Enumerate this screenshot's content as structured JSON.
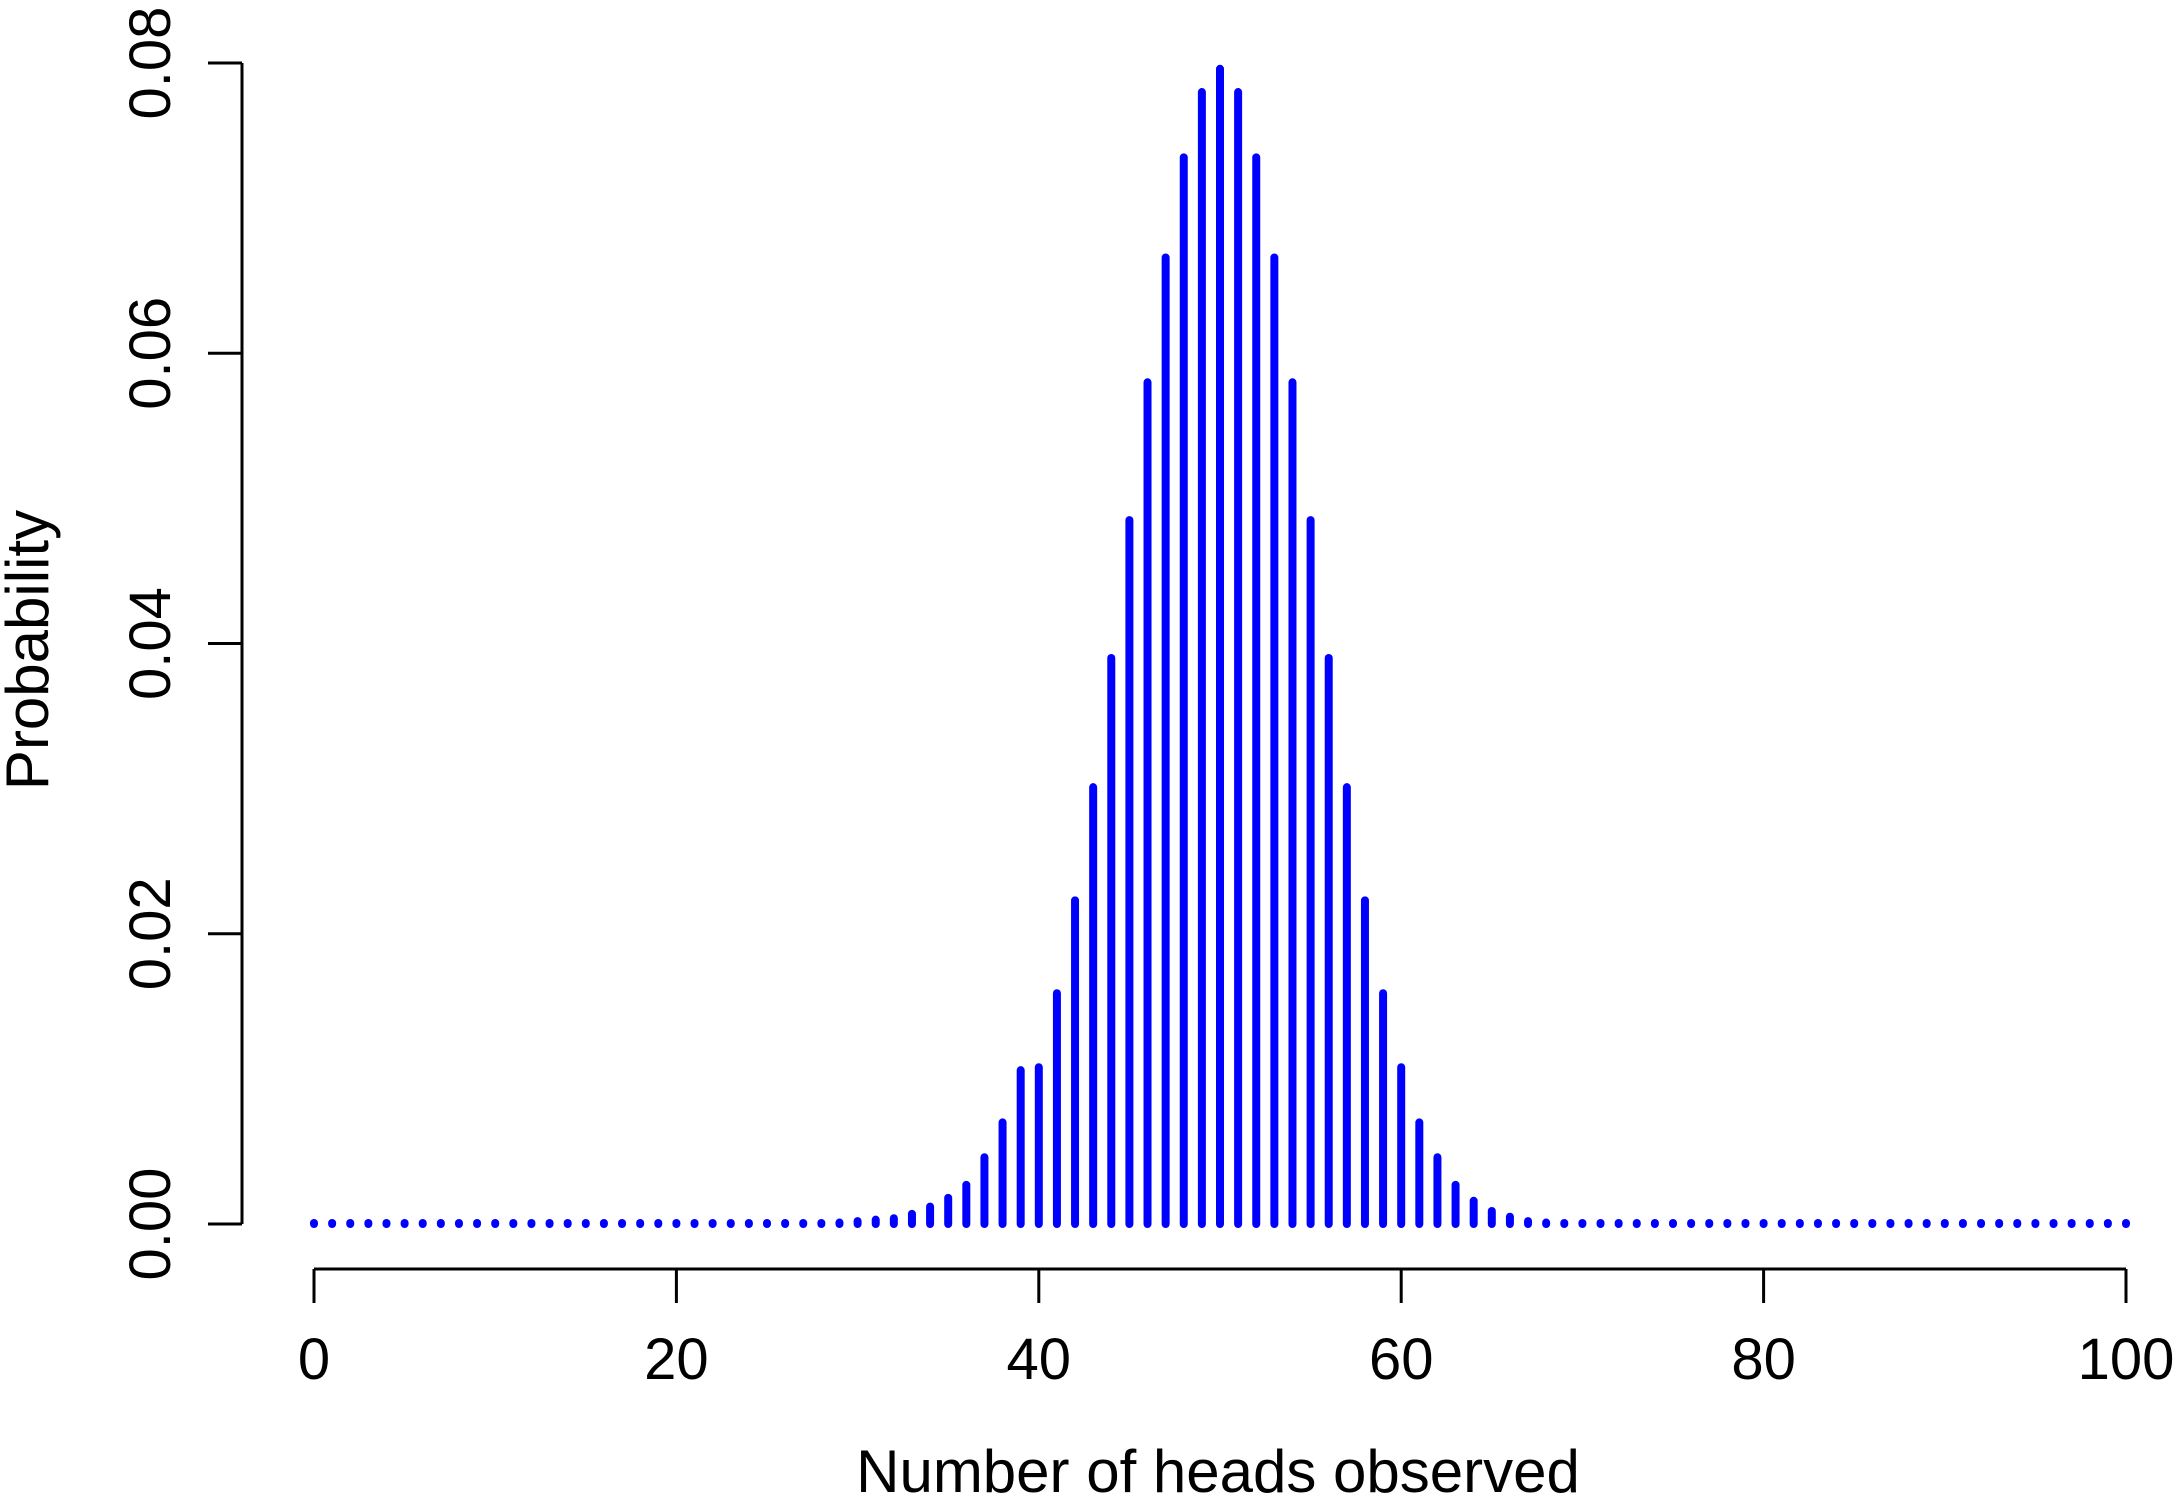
{
  "chart_data": {
    "type": "bar",
    "title": "",
    "xlabel": "Number of heads observed",
    "ylabel": "Probability",
    "xlim": [
      0,
      100
    ],
    "ylim": [
      0,
      0.08
    ],
    "x_ticks": [
      "0",
      "20",
      "40",
      "60",
      "80",
      "100"
    ],
    "y_ticks": [
      "0.00",
      "0.02",
      "0.04",
      "0.06",
      "0.08"
    ],
    "grid": false,
    "legend": "none",
    "bar_color": "#0000ff",
    "axis_color": "#000000",
    "series": [
      {
        "x": [
          0,
          1,
          2,
          3,
          4,
          5,
          6,
          7,
          8,
          9,
          10,
          11,
          12,
          13,
          14,
          15,
          16,
          17,
          18,
          19,
          20,
          21,
          22,
          23,
          24,
          25,
          26,
          27,
          28,
          29,
          30,
          31,
          32,
          33,
          34,
          35,
          36,
          37,
          38,
          39,
          40,
          41,
          42,
          43,
          44,
          45,
          46,
          47,
          48,
          49,
          50,
          51,
          52,
          53,
          54,
          55,
          56,
          57,
          58,
          59,
          60,
          61,
          62,
          63,
          64,
          65,
          66,
          67,
          68,
          69,
          70,
          71,
          72,
          73,
          74,
          75,
          76,
          77,
          78,
          79,
          80,
          81,
          82,
          83,
          84,
          85,
          86,
          87,
          88,
          89,
          90,
          91,
          92,
          93,
          94,
          95,
          96,
          97,
          98,
          99,
          100
        ],
        "values": [
          0,
          0,
          0,
          0,
          0,
          0,
          0,
          0,
          0,
          0,
          0,
          0,
          0,
          0,
          0,
          0,
          0,
          0,
          0,
          0,
          0,
          0,
          0,
          0,
          0,
          0,
          0,
          0,
          0,
          0.0001,
          0.0002,
          0.0003,
          0.0004,
          0.0007,
          0.0012,
          0.0018,
          0.0027,
          0.0046,
          0.007,
          0.0106,
          0.0108,
          0.0159,
          0.0223,
          0.0301,
          0.039,
          0.0485,
          0.058,
          0.0666,
          0.0735,
          0.078,
          0.0796,
          0.078,
          0.0735,
          0.0666,
          0.058,
          0.0485,
          0.039,
          0.0301,
          0.0223,
          0.0159,
          0.0108,
          0.007,
          0.0046,
          0.0027,
          0.0016,
          0.0009,
          0.0005,
          0.0002,
          0.0001,
          0,
          0,
          0,
          0,
          0,
          0,
          0,
          0,
          0,
          0,
          0,
          0,
          0,
          0,
          0,
          0,
          0,
          0,
          0,
          0,
          0,
          0,
          0,
          0,
          0,
          0,
          0,
          0,
          0,
          0,
          0,
          0
        ]
      }
    ]
  }
}
